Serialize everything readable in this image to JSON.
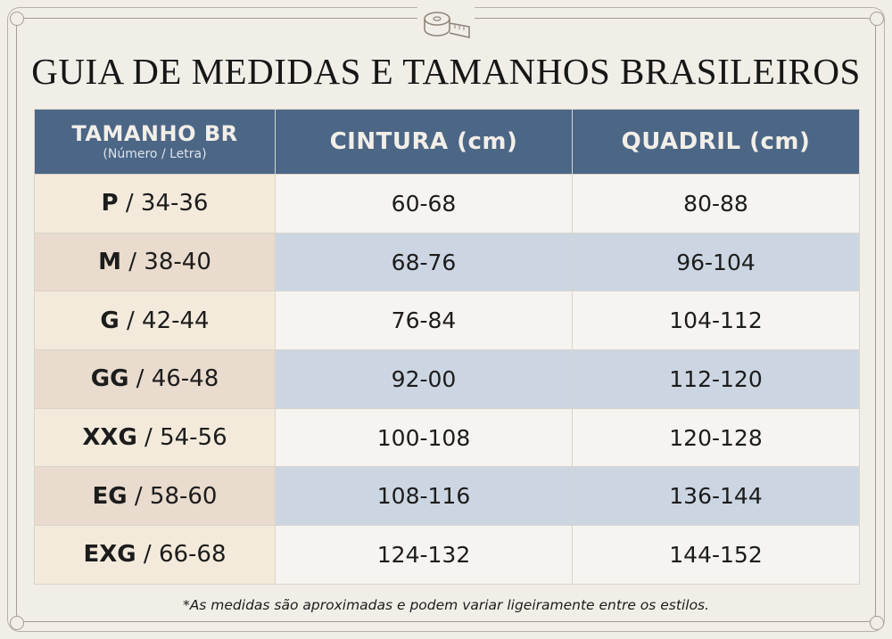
{
  "title": "GUIA DE MEDIDAS E TAMANHOS BRASILEIROS",
  "icon": "measuring-tape",
  "colors": {
    "header_bg": "#4c6686",
    "size_col_light": "#f3eadb",
    "size_col_dark": "#e9dbcd",
    "row_light": "#f6f4f1",
    "row_blue": "#ccd6e2"
  },
  "table": {
    "headers": {
      "size_main": "TAMANHO BR",
      "size_sub": "(Número / Letra)",
      "waist": "CINTURA (cm)",
      "hip": "QUADRIL (cm)"
    },
    "rows": [
      {
        "letter": "P",
        "number": " / 34-36",
        "waist": "60-68",
        "hip": "80-88"
      },
      {
        "letter": "M",
        "number": " / 38-40",
        "waist": "68-76",
        "hip": "96-104"
      },
      {
        "letter": "G",
        "number": " / 42-44",
        "waist": "76-84",
        "hip": "104-112"
      },
      {
        "letter": "GG",
        "number": " / 46-48",
        "waist": "92-00",
        "hip": "112-120"
      },
      {
        "letter": "XXG",
        "number": " / 54-56",
        "waist": "100-108",
        "hip": "120-128"
      },
      {
        "letter": "EG",
        "number": " / 58-60",
        "waist": "108-116",
        "hip": "136-144"
      },
      {
        "letter": "EXG",
        "number": " / 66-68",
        "waist": "124-132",
        "hip": "144-152"
      }
    ]
  },
  "footnote": "*As medidas são aproximadas e podem variar ligeiramente entre os estilos."
}
